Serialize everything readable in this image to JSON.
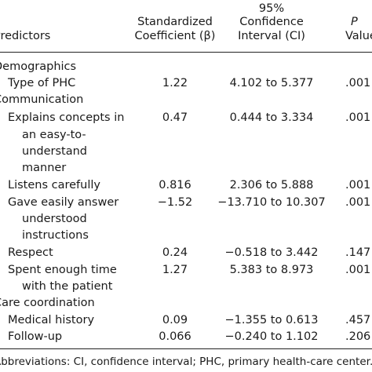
{
  "header": {
    "predictors": "Predictors",
    "coef_line1": "Standardized",
    "coef_line2": "Coefficient (β)",
    "ci_line0": "95%",
    "ci_line1": "Confidence",
    "ci_line2": "Interval (CI)",
    "p_line1": "P",
    "p_line2": "Value"
  },
  "rows": [
    {
      "label": "Demographics"
    },
    {
      "label": "Type of PHC",
      "coef": "1.22",
      "ci": "4.102 to 5.377",
      "p": ".001"
    },
    {
      "label": "Communication"
    },
    {
      "label_lines": [
        "Explains concepts in",
        "an easy-to-",
        "understand",
        "manner"
      ],
      "coef": "0.47",
      "ci": "0.444 to 3.334",
      "p": ".001"
    },
    {
      "label": "Listens carefully",
      "coef": "0.816",
      "ci": "2.306 to 5.888",
      "p": ".001"
    },
    {
      "label_lines": [
        "Gave easily answer",
        "understood",
        "instructions"
      ],
      "coef": "−1.52",
      "ci": "−13.710 to 10.307",
      "p": ".001"
    },
    {
      "label": "Respect",
      "coef": "0.24",
      "ci": "−0.518 to 3.442",
      "p": ".147"
    },
    {
      "label_lines": [
        "Spent enough time",
        "with the patient"
      ],
      "coef": "1.27",
      "ci": "5.383 to 8.973",
      "p": ".001"
    },
    {
      "label": "Care coordination"
    },
    {
      "label": "Medical history",
      "coef": "0.09",
      "ci": "−1.355 to 0.613",
      "p": ".457"
    },
    {
      "label": "Follow-up",
      "coef": "0.066",
      "ci": "−0.240 to 1.102",
      "p": ".206"
    }
  ],
  "footnote": "Abbreviations: CI, confidence interval; PHC, primary health-care center."
}
